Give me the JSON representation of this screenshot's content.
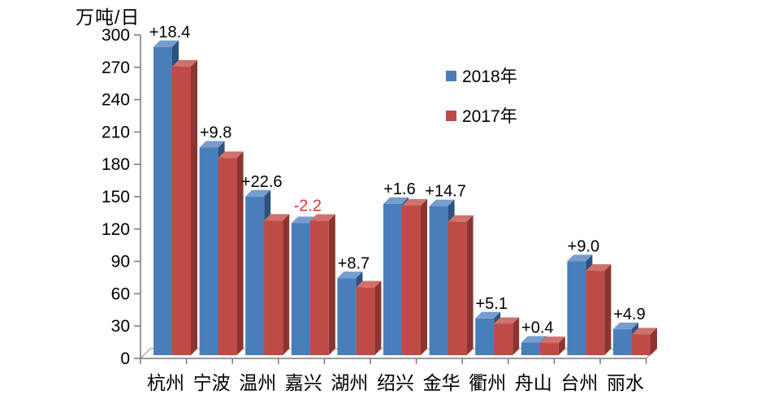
{
  "chart_data": {
    "type": "bar",
    "style": "3d-clustered-column",
    "title": "",
    "ylabel": "万吨/日",
    "xlabel": "",
    "grid": false,
    "legend_position": "upper-center-right",
    "categories": [
      "杭州",
      "宁波",
      "温州",
      "嘉兴",
      "湖州",
      "绍兴",
      "金华",
      "衢州",
      "舟山",
      "台州",
      "丽水"
    ],
    "series": [
      {
        "name": "2018年",
        "color": "#4a7ebb",
        "values": [
          289.5,
          195.0,
          149.0,
          124.0,
          72.3,
          142.1,
          140.0,
          34.5,
          11.8,
          88.3,
          24.5
        ]
      },
      {
        "name": "2017年",
        "color": "#bf4b47",
        "values": [
          271.1,
          185.2,
          126.4,
          126.2,
          63.6,
          140.5,
          125.3,
          29.4,
          11.4,
          79.3,
          19.6
        ]
      }
    ],
    "change_labels": [
      "+18.4",
      "+9.8",
      "+22.6",
      "-2.2",
      "+8.7",
      "+1.6",
      "+14.7",
      "+5.1",
      "+0.4",
      "+9.0",
      "+4.9"
    ],
    "y_axis": {
      "min": 0,
      "max": 300,
      "step": 30,
      "ticks": [
        0,
        30,
        60,
        90,
        120,
        150,
        180,
        210,
        240,
        270,
        300
      ]
    }
  },
  "colors": {
    "axis": "#808080",
    "floor_stroke": "#a6a6a6",
    "blue_front": "#4a7ebb",
    "blue_top": "#759dce",
    "blue_side": "#2e517d",
    "red_front": "#bf4b47",
    "red_top": "#d0716d",
    "red_side": "#8a3531",
    "positive_label_color": "#000000",
    "negative_label_color": "#e03030",
    "text": "#000000"
  }
}
